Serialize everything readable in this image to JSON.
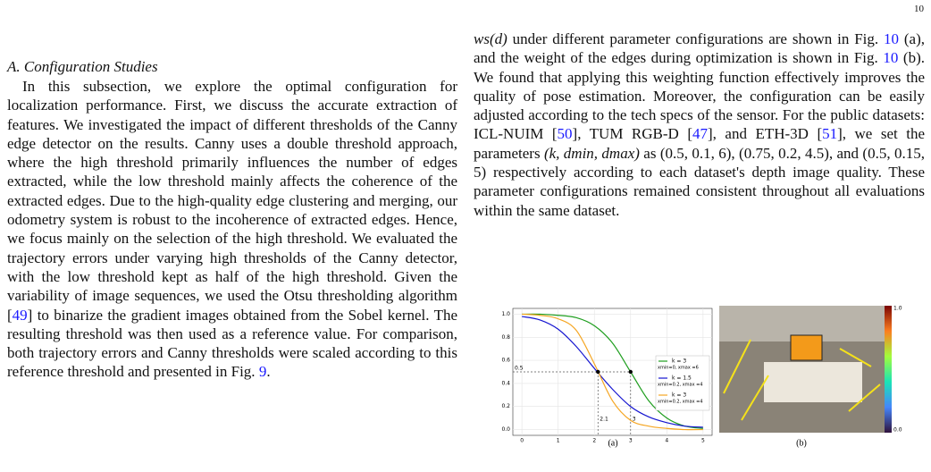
{
  "page_number": "10",
  "left": {
    "heading": "A. Configuration Studies",
    "paragraph": [
      {
        "text": "In this subsection, we explore the optimal configuration for localization performance. First, we discuss the accurate extraction of features. We investigated the impact of different thresholds of the Canny edge detector on the results. Canny uses a double threshold approach, where the high threshold primarily influences the number of edges extracted, while the low threshold mainly affects the coherence of the extracted edges. Due to the high-quality edge clustering and merging, our odometry system is robust to the incoherence of extracted edges. Hence, we focus mainly on the selection of the high threshold. We evaluated the trajectory errors under varying high thresholds of the Canny detector, with the low threshold kept as half of the high threshold. Given the variability of image sequences, we used the Otsu thresholding algorithm ["
      },
      {
        "text": "49",
        "ref": true
      },
      {
        "text": "] to binarize the gradient images obtained from the Sobel kernel. The resulting threshold was then used as a reference value. For comparison, both trajectory errors and Canny thresholds were scaled according to this reference threshold and presented in Fig. "
      },
      {
        "text": "9",
        "ref": true
      },
      {
        "text": "."
      }
    ]
  },
  "right": {
    "paragraph": [
      {
        "text": "ws(d)",
        "math": true
      },
      {
        "text": " under different parameter configurations are shown in Fig. "
      },
      {
        "text": "10",
        "ref": true
      },
      {
        "text": " (a), and the weight of the edges during optimization is shown in Fig. "
      },
      {
        "text": "10",
        "ref": true
      },
      {
        "text": " (b). We found that applying this weighting function effectively improves the quality of pose estimation. Moreover, the configuration can be easily adjusted according to the tech specs of the sensor. For the public datasets: ICL-NUIM ["
      },
      {
        "text": "50",
        "ref": true
      },
      {
        "text": "], TUM RGB-D ["
      },
      {
        "text": "47",
        "ref": true
      },
      {
        "text": "], and ETH-3D ["
      },
      {
        "text": "51",
        "ref": true
      },
      {
        "text": "], we set the parameters "
      },
      {
        "text": "(k, dmin, dmax)",
        "math": true
      },
      {
        "text": " as (0.5, 0.1, 6), (0.75, 0.2, 4.5), and (0.5, 0.15, 5) respectively according to each dataset's depth image quality. These parameter configurations remained consistent throughout all evaluations within the same dataset."
      }
    ]
  },
  "figure": {
    "a": {
      "caption": "(a)",
      "chart_data": {
        "type": "line",
        "x": [
          0,
          0.5,
          1,
          1.5,
          2,
          2.5,
          3,
          3.5,
          4,
          4.5,
          5
        ],
        "series": [
          {
            "name": "k = 3",
            "params": "xmin=0, xmax =6",
            "color": "#1f9e1f",
            "values": [
              1.0,
              1.0,
              0.99,
              0.97,
              0.9,
              0.75,
              0.5,
              0.25,
              0.1,
              0.03,
              0.01
            ]
          },
          {
            "name": "k = 1.5",
            "params": "xmin=0.2, xmax =4",
            "color": "#1515d0",
            "values": [
              0.98,
              0.95,
              0.87,
              0.72,
              0.53,
              0.35,
              0.2,
              0.11,
              0.06,
              0.03,
              0.02
            ]
          },
          {
            "name": "k = 3",
            "params": "xmin=0.2, xmax =4",
            "color": "#f5a623",
            "values": [
              1.0,
              0.99,
              0.96,
              0.86,
              0.57,
              0.25,
              0.08,
              0.03,
              0.01,
              0.0,
              0.0
            ]
          }
        ],
        "xlim": [
          -0.25,
          5.25
        ],
        "ylim": [
          -0.05,
          1.05
        ],
        "xticks": [
          0,
          1,
          2,
          3,
          4,
          5
        ],
        "yticks": [
          {
            "value": 0,
            "label": "0.0"
          },
          0.2,
          0.4,
          0.6,
          0.8,
          {
            "value": 1,
            "label": "1.0"
          }
        ],
        "grid": true,
        "hline": {
          "y": 0.5,
          "label": "0.5"
        },
        "markers": [
          {
            "x": 2.1,
            "y": 0.5,
            "label": "2.1"
          },
          {
            "x": 3,
            "y": 0.5,
            "label": "3"
          }
        ]
      }
    },
    "b": {
      "caption": "(b)",
      "colorbar_top": "1.0",
      "colorbar_bottom": "0.0"
    }
  }
}
